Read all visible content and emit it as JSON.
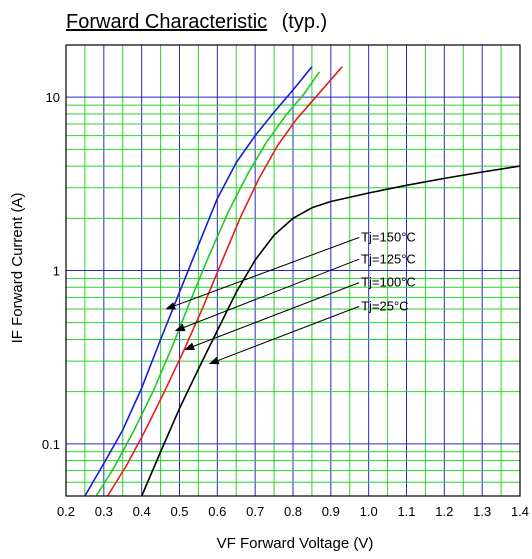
{
  "chart_data": {
    "type": "line",
    "title": "Forward Characteristic",
    "subtitle": "(typ.)",
    "xlabel": "VF   Forward Voltage  (V)",
    "ylabel": "IF   Forward Current  (A)",
    "x_scale": "linear",
    "y_scale": "log",
    "xlim": [
      0.2,
      1.4
    ],
    "ylim": [
      0.05,
      20
    ],
    "x_ticks": [
      "0.2",
      "0.3",
      "0.4",
      "0.5",
      "0.6",
      "0.7",
      "0.8",
      "0.9",
      "1.0",
      "1.1",
      "1.2",
      "1.3",
      "1.4"
    ],
    "y_ticks": [
      {
        "value": 0.1,
        "label": "0.1"
      },
      {
        "value": 1,
        "label": "1"
      },
      {
        "value": 10,
        "label": "10"
      }
    ],
    "grid": true,
    "series": [
      {
        "name": "Tj=150°C",
        "color": "#1a1adc",
        "x": [
          0.25,
          0.3,
          0.35,
          0.4,
          0.45,
          0.5,
          0.55,
          0.6,
          0.65,
          0.7,
          0.75,
          0.8,
          0.85
        ],
        "y": [
          0.05,
          0.077,
          0.12,
          0.21,
          0.4,
          0.75,
          1.4,
          2.6,
          4.2,
          6.0,
          8.2,
          11.0,
          15.0
        ]
      },
      {
        "name": "Tj=125°C",
        "color": "#1ecb1e",
        "x": [
          0.28,
          0.33,
          0.38,
          0.43,
          0.48,
          0.53,
          0.58,
          0.63,
          0.68,
          0.73,
          0.78,
          0.83,
          0.87
        ],
        "y": [
          0.05,
          0.075,
          0.12,
          0.2,
          0.36,
          0.68,
          1.25,
          2.2,
          3.6,
          5.5,
          7.8,
          10.5,
          14.0
        ]
      },
      {
        "name": "Tj=100°C",
        "color": "#e81c1c",
        "x": [
          0.31,
          0.36,
          0.41,
          0.46,
          0.51,
          0.56,
          0.61,
          0.66,
          0.71,
          0.76,
          0.81,
          0.86,
          0.93
        ],
        "y": [
          0.05,
          0.075,
          0.12,
          0.2,
          0.34,
          0.6,
          1.1,
          2.0,
          3.4,
          5.3,
          7.5,
          10.0,
          15.0
        ]
      },
      {
        "name": "Tj=25°C",
        "color": "#000000",
        "x": [
          0.4,
          0.45,
          0.5,
          0.55,
          0.6,
          0.65,
          0.7,
          0.75,
          0.8,
          0.85,
          0.9,
          1.0,
          1.1,
          1.2,
          1.3,
          1.4
        ],
        "y": [
          0.05,
          0.09,
          0.16,
          0.27,
          0.45,
          0.75,
          1.15,
          1.6,
          2.0,
          2.3,
          2.5,
          2.8,
          3.1,
          3.4,
          3.7,
          4.0
        ]
      }
    ],
    "annotations": [
      {
        "text": "Tj=150°C",
        "points_to": {
          "x": 0.465,
          "y": 0.6
        }
      },
      {
        "text": "Tj=125°C",
        "points_to": {
          "x": 0.49,
          "y": 0.45
        }
      },
      {
        "text": "Tj=100°C",
        "points_to": {
          "x": 0.515,
          "y": 0.35
        }
      },
      {
        "text": "Tj=25°C",
        "points_to": {
          "x": 0.58,
          "y": 0.29
        }
      }
    ]
  }
}
